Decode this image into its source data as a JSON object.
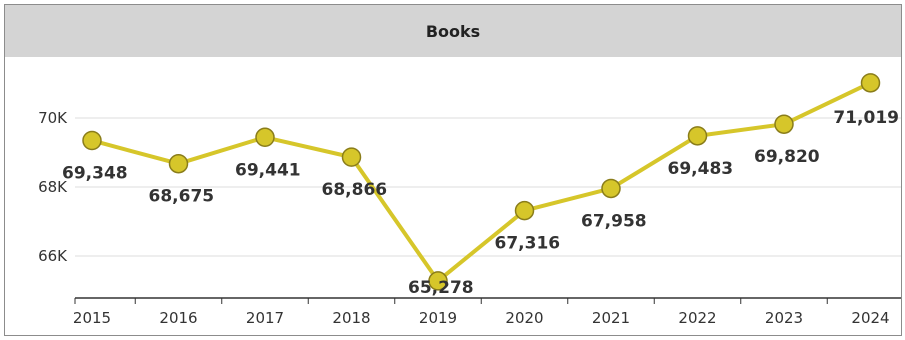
{
  "chart_data": {
    "type": "line",
    "title": "Books",
    "x": [
      "2015",
      "2016",
      "2017",
      "2018",
      "2019",
      "2020",
      "2021",
      "2022",
      "2023",
      "2024"
    ],
    "series": [
      {
        "values": [
          69348,
          68675,
          69441,
          68866,
          65278,
          67316,
          67958,
          69483,
          69820,
          71019
        ]
      }
    ],
    "data_labels": [
      "69,348",
      "68,675",
      "69,441",
      "68,866",
      "65,278",
      "67,316",
      "67,958",
      "69,483",
      "69,820",
      "71,019"
    ],
    "y_ticks": [
      66000,
      68000,
      70000
    ],
    "y_tick_labels": [
      "66K",
      "68K",
      "70K"
    ],
    "ylim": [
      65000,
      71900
    ],
    "grid": true,
    "legend": "none",
    "colors": {
      "line": "#d6c62a",
      "marker_fill": "#d6c62a",
      "marker_stroke": "#8a7d1a",
      "grid": "#dddddd",
      "header_bg": "#d4d4d4"
    }
  }
}
